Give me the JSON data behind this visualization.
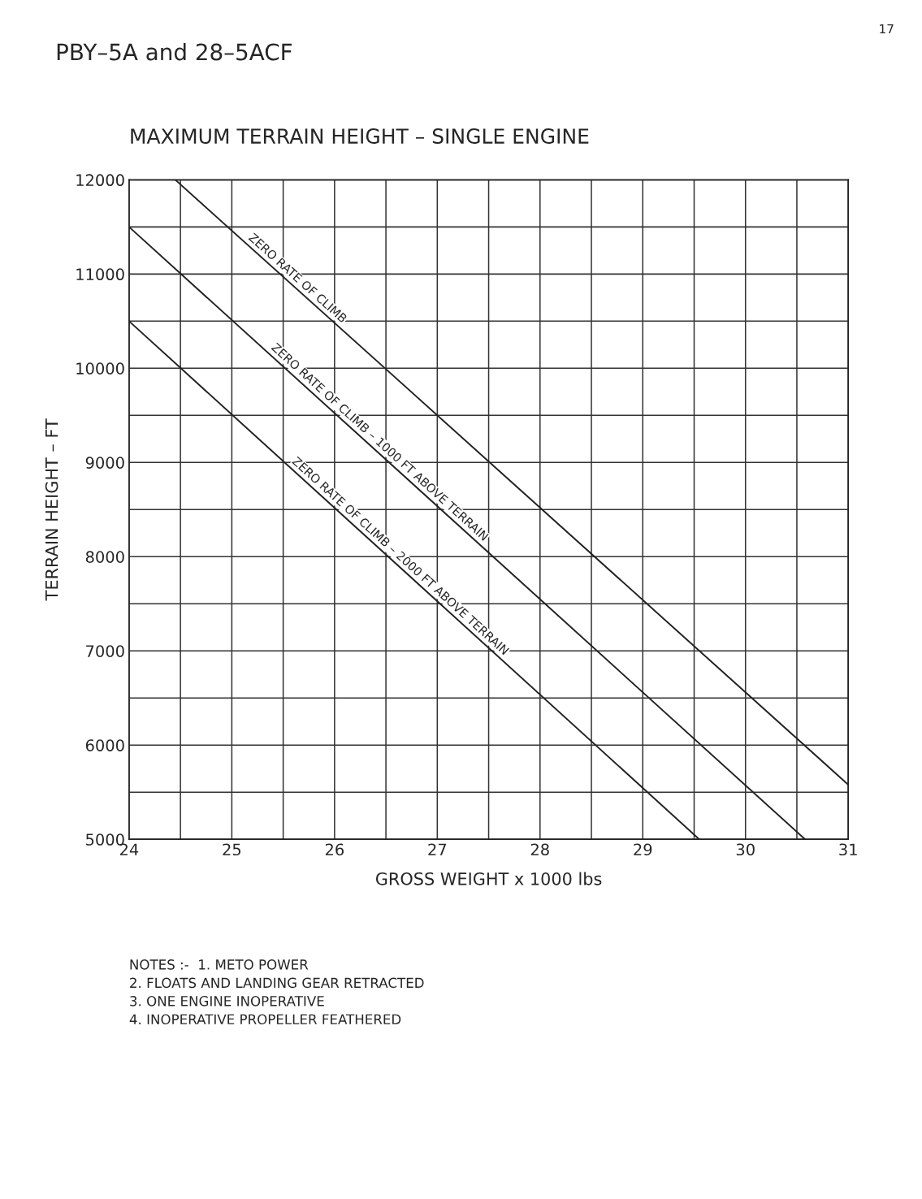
{
  "chart_data": {
    "type": "line",
    "title": "PBY–5A and 28–5ACF",
    "subtitle": "MAXIMUM TERRAIN HEIGHT – SINGLE ENGINE",
    "xlabel": "GROSS WEIGHT x 1000 lbs",
    "ylabel": "TERRAIN HEIGHT – FT",
    "series": [
      {
        "color": "#222222",
        "x": [
          24.45,
          31
        ],
        "values": [
          12000,
          5580
        ]
      },
      {
        "color": "#222222",
        "x": [
          24,
          30.58
        ],
        "values": [
          11500,
          5000
        ]
      },
      {
        "color": "#222222",
        "x": [
          24,
          29.55
        ],
        "values": [
          10500,
          5000
        ]
      }
    ],
    "xlim": [
      24,
      31
    ],
    "ylim": [
      5000,
      12000
    ],
    "xticks": [
      24,
      {
        "value": 24.5,
        "label": null
      },
      25,
      {
        "value": 25.5,
        "label": null
      },
      26,
      {
        "value": 26.5,
        "label": null
      },
      27,
      {
        "value": 27.5,
        "label": null
      },
      28,
      {
        "value": 28.5,
        "label": null
      },
      29,
      {
        "value": 29.5,
        "label": null
      },
      30,
      {
        "value": 30.5,
        "label": null
      },
      31
    ],
    "yticks": [
      5000,
      {
        "value": 5500,
        "label": null
      },
      6000,
      {
        "value": 6500,
        "label": null
      },
      7000,
      {
        "value": 7500,
        "label": null
      },
      8000,
      {
        "value": 8500,
        "label": null
      },
      9000,
      {
        "value": 9500,
        "label": null
      },
      10000,
      {
        "value": 10500,
        "label": null
      },
      11000,
      {
        "value": 11500,
        "label": null
      },
      12000
    ],
    "grid": true,
    "marker": "none",
    "line_style": "solid",
    "annotations": [
      {
        "text": "ZERO RATE OF CLIMB",
        "x": 25.6,
        "y": 10870
      },
      {
        "text": "ZERO RATE OF CLIMB – 1000 FT ABOVE TERRAIN",
        "x": 26.4,
        "y": 9130
      },
      {
        "text": "ZERO RATE OF CLIMB – 2000 FT ABOVE TERRAIN",
        "x": 26.6,
        "y": 7920
      },
      "NOTES :-  1. METO POWER\n2. FLOATS AND LANDING GEAR RETRACTED\n3. ONE ENGINE INOPERATIVE\n4. INOPERATIVE PROPELLER FEATHERED",
      "17"
    ]
  }
}
